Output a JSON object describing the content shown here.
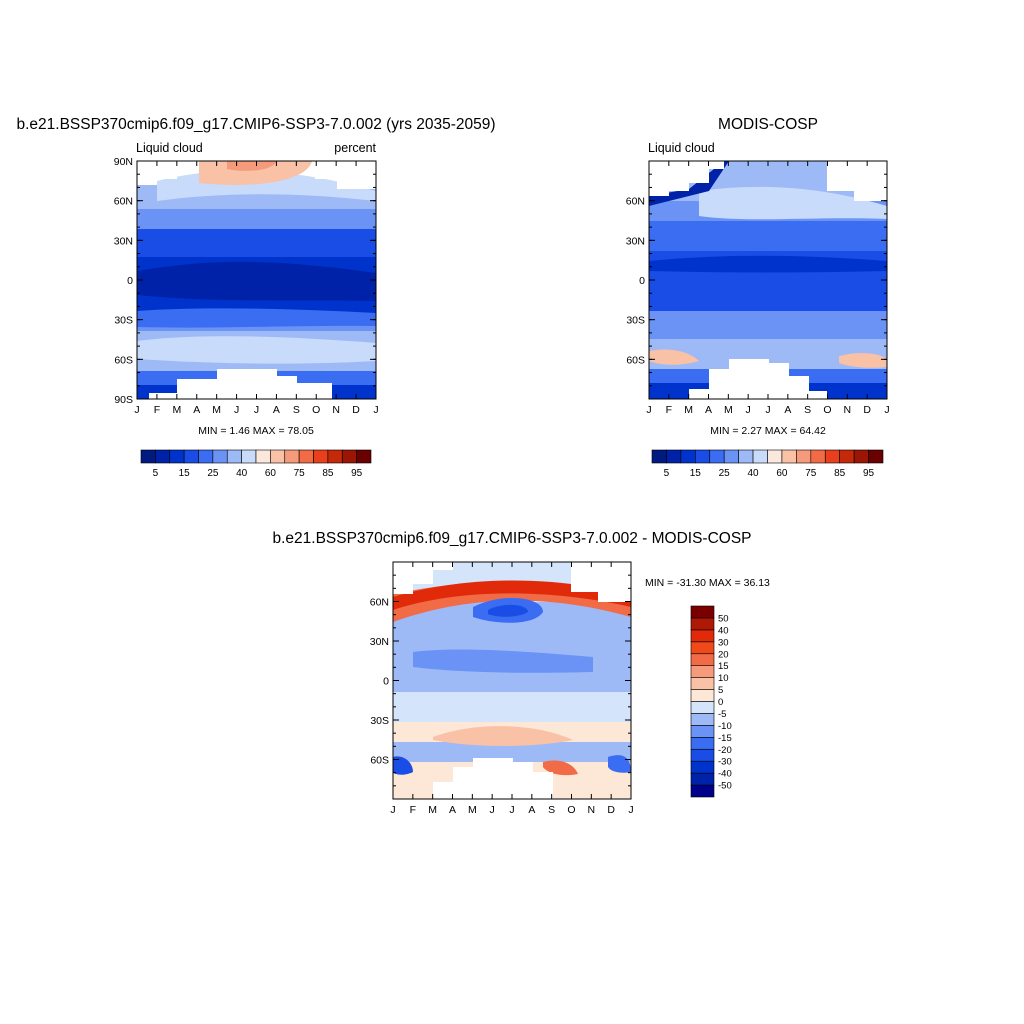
{
  "chart_data": [
    {
      "type": "heatmap",
      "title": "b.e21.BSSP370cmip6.f09_g17.CMIP6-SSP3-7.0.002 (yrs 2035-2059)",
      "left_label": "Liquid cloud",
      "right_label": "percent",
      "x_ticks": [
        "J",
        "F",
        "M",
        "A",
        "M",
        "J",
        "J",
        "A",
        "S",
        "O",
        "N",
        "D",
        "J"
      ],
      "y_ticks": [
        "90N",
        "60N",
        "30N",
        "0",
        "30S",
        "60S",
        "90S"
      ],
      "ylim": [
        -90,
        90
      ],
      "stats": "MIN =   1.46 MAX =  78.05",
      "colorbar": {
        "orientation": "horizontal",
        "labels": [
          "5",
          "15",
          "25",
          "40",
          "60",
          "75",
          "85",
          "95"
        ],
        "colors": [
          "#001a80",
          "#0022a8",
          "#0033cc",
          "#1a4de6",
          "#3b6df2",
          "#6a93f5",
          "#9dbaf7",
          "#c8dbfb",
          "#fbe8dc",
          "#f9c1a6",
          "#f59b7b",
          "#f06b46",
          "#e8401c",
          "#c42a0a",
          "#9c1606",
          "#6b0000"
        ]
      },
      "colors": {
        "polar_band": "#9dbaf7",
        "mid_band": "#3b6df2",
        "tropical_band": "#0033cc",
        "core": "#0022a8",
        "warm_spot": "#f59b7b"
      }
    },
    {
      "type": "heatmap",
      "title": "MODIS-COSP",
      "left_label": "Liquid cloud",
      "x_ticks": [
        "J",
        "F",
        "M",
        "A",
        "M",
        "J",
        "J",
        "A",
        "S",
        "O",
        "N",
        "D",
        "J"
      ],
      "y_ticks": [
        "60N",
        "30N",
        "0",
        "30S",
        "60S"
      ],
      "stats": "MIN =   2.27 MAX =  64.42",
      "colorbar": {
        "orientation": "horizontal",
        "labels": [
          "5",
          "15",
          "25",
          "40",
          "60",
          "75",
          "85",
          "95"
        ],
        "colors": [
          "#001a80",
          "#0022a8",
          "#0033cc",
          "#1a4de6",
          "#3b6df2",
          "#6a93f5",
          "#9dbaf7",
          "#c8dbfb",
          "#fbe8dc",
          "#f9c1a6",
          "#f59b7b",
          "#f06b46",
          "#e8401c",
          "#c42a0a",
          "#9c1606",
          "#6b0000"
        ]
      }
    },
    {
      "type": "heatmap",
      "title": "b.e21.BSSP370cmip6.f09_g17.CMIP6-SSP3-7.0.002 - MODIS-COSP",
      "x_ticks": [
        "J",
        "F",
        "M",
        "A",
        "M",
        "J",
        "J",
        "A",
        "S",
        "O",
        "N",
        "D",
        "J"
      ],
      "y_ticks": [
        "60N",
        "30N",
        "0",
        "30S",
        "60S"
      ],
      "stats": "MIN = -31.30 MAX =  36.13",
      "colorbar": {
        "orientation": "vertical",
        "labels": [
          "50",
          "40",
          "30",
          "20",
          "15",
          "10",
          "5",
          "0",
          "-5",
          "-10",
          "-15",
          "-20",
          "-30",
          "-40",
          "-50"
        ],
        "colors": [
          "#00008b",
          "#0022a8",
          "#0033cc",
          "#1a4de6",
          "#3b6df2",
          "#6a93f5",
          "#9dbaf7",
          "#d4e4fb",
          "#fde8d8",
          "#f9c1a6",
          "#f59b7b",
          "#f06b46",
          "#f04a1a",
          "#e02a0a",
          "#b01806",
          "#7a0000"
        ]
      }
    }
  ]
}
